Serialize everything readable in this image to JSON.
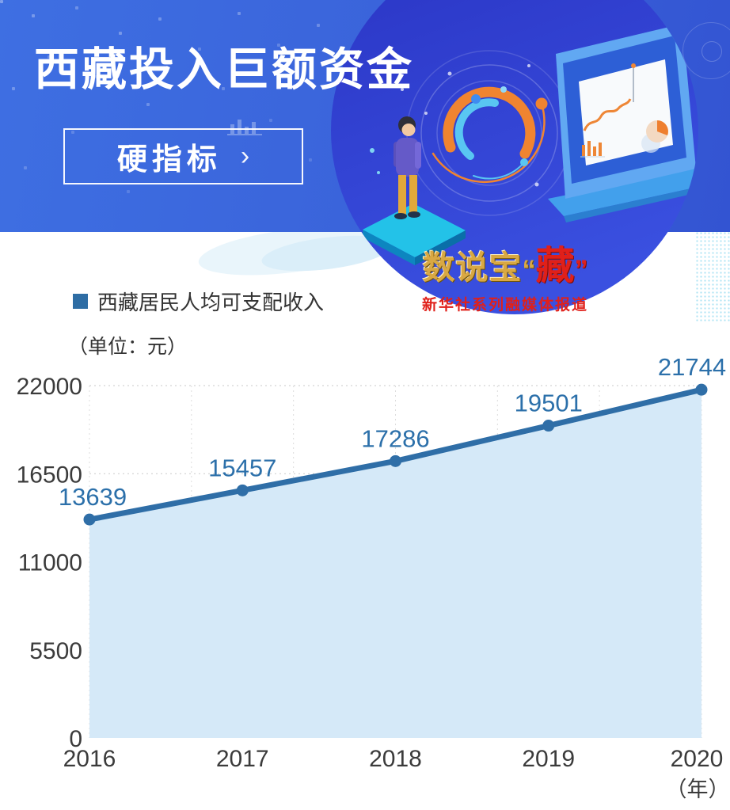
{
  "header": {
    "title": "西藏投入巨额资金",
    "button_label": "硬指标",
    "button_chevron": "›"
  },
  "logo": {
    "prefix": "数说宝",
    "open_quote": "“",
    "highlight": "藏",
    "close_quote": "”",
    "subtitle": "新华社系列融媒体报道",
    "gold_color": "#d9a843",
    "red_color": "#e0201a"
  },
  "legend": {
    "marker_color": "#2e6da4",
    "label": "西藏居民人均可支配收入"
  },
  "unit_label": "（单位：元）",
  "chart_data": {
    "type": "area",
    "title": "西藏居民人均可支配收入",
    "x": [
      2016,
      2017,
      2018,
      2019,
      2020
    ],
    "series": [
      {
        "name": "西藏居民人均可支配收入",
        "values": [
          13639,
          15457,
          17286,
          19501,
          21744
        ]
      }
    ],
    "ylim": [
      0,
      22000
    ],
    "yticks": [
      0,
      5500,
      11000,
      16500,
      22000
    ],
    "xlabel": "（年）",
    "ylabel": "元",
    "grid": true,
    "legend_position": "top-left",
    "line_color": "#2f6ea7",
    "fill_color": "#d5e9f8",
    "marker_color": "#2f6ea7",
    "data_label_color": "#2c70aa",
    "axis_text_color": "#3b3b3b",
    "h_grid_color": "#c9c9c9",
    "v_grid_color": "#dcdcdc"
  }
}
